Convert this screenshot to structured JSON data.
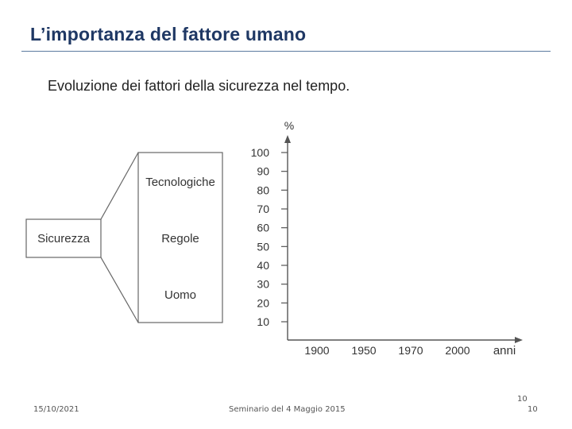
{
  "slide": {
    "title": "L’importanza del fattore umano",
    "subtitle": "Evoluzione dei fattori della sicurezza nel tempo."
  },
  "diagram": {
    "root_label": "Sicurezza",
    "factors": [
      "Tecnologiche",
      "Regole",
      "Uomo"
    ]
  },
  "chart_data": {
    "type": "line",
    "ylabel": "%",
    "xlabel": "anni",
    "y_ticks": [
      10,
      20,
      30,
      40,
      50,
      60,
      70,
      80,
      90,
      100
    ],
    "x_ticks": [
      "1900",
      "1950",
      "1970",
      "2000"
    ],
    "series": []
  },
  "footer": {
    "date": "15/10/2021",
    "center": "Seminario del 4 Maggio 2015",
    "page_top": "10",
    "page": "10"
  }
}
